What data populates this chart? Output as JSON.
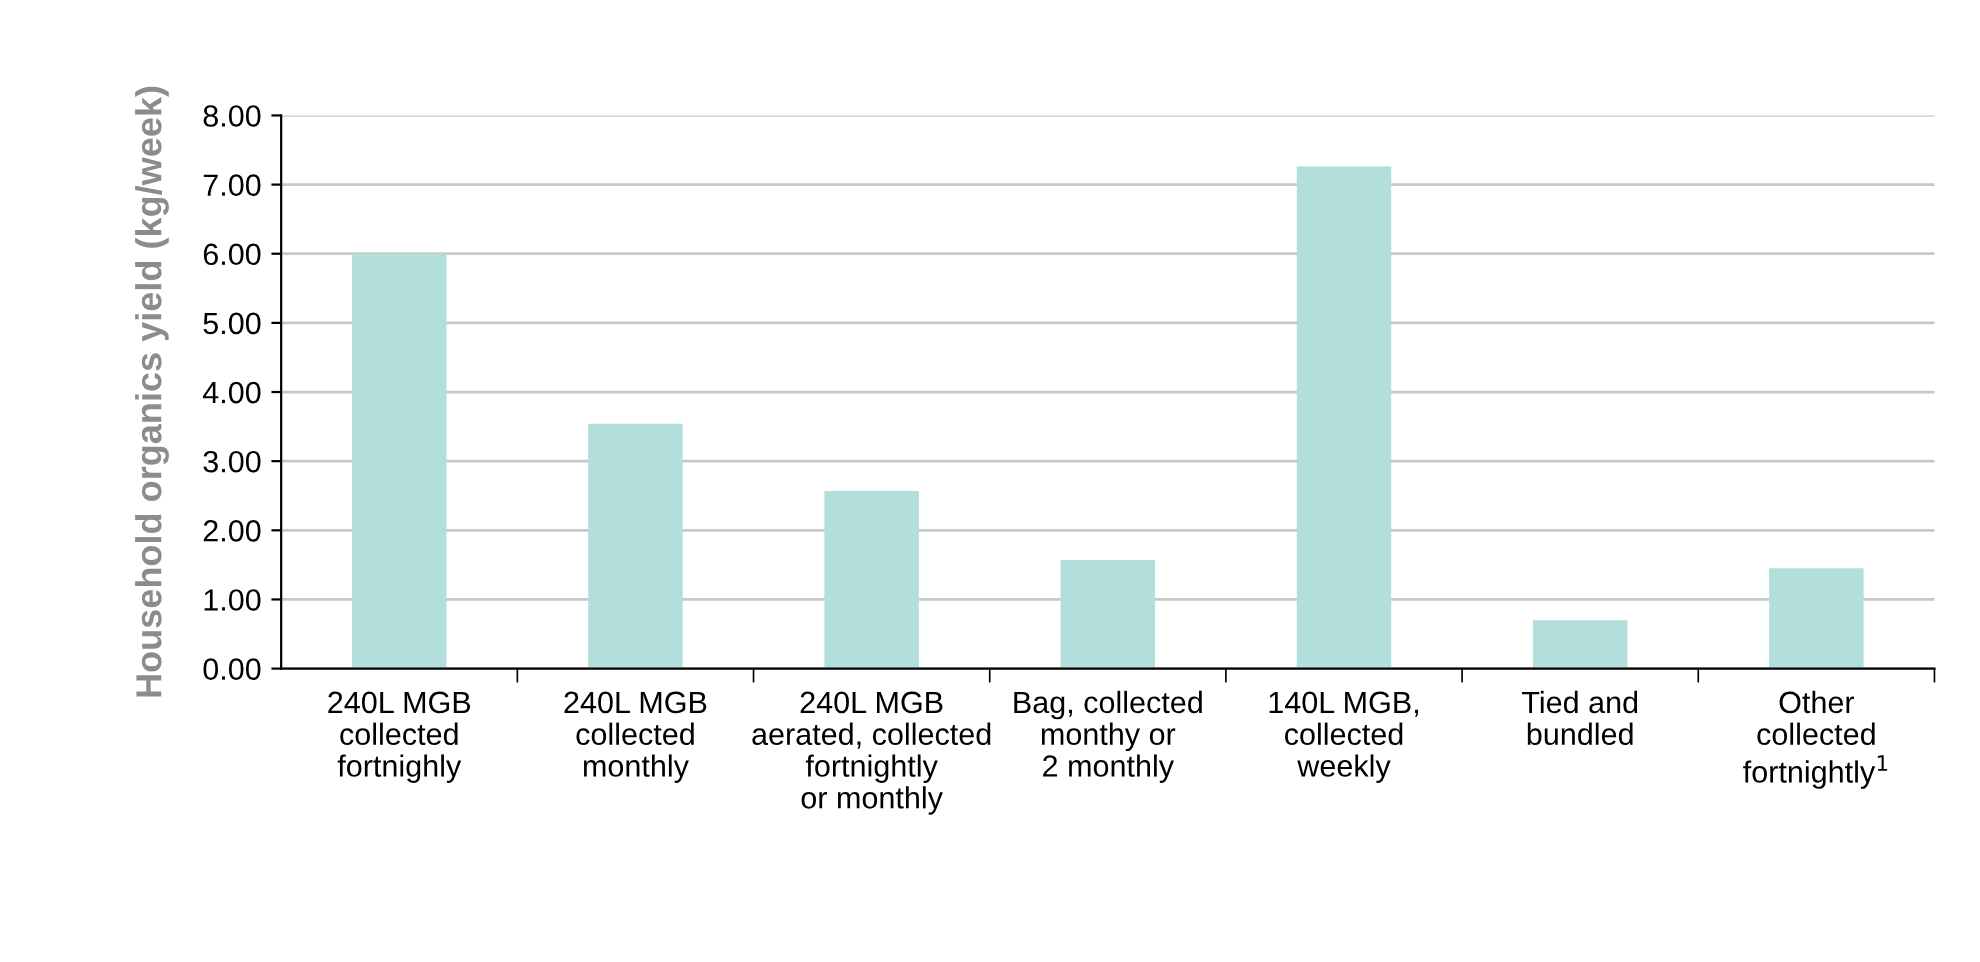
{
  "chart_data": {
    "type": "bar",
    "ylabel": "Household organics yield (kg/week)",
    "categories": [
      "240L MGB\ncollected\nfortnighly",
      "240L MGB\ncollected\nmonthly",
      "240L MGB\naerated, collected\nfortnightly\nor monthly",
      "Bag, collected\nmonthy or\n2 monthly",
      "140L MGB,\ncollected\nweekly",
      "Tied and\nbundled",
      "Other\ncollected\nfortnightly$^{1}$"
    ],
    "values": [
      6.0,
      3.54,
      2.57,
      1.57,
      7.26,
      0.7,
      1.45
    ],
    "color": "#b2dedc",
    "ylim": [
      0,
      8
    ],
    "yticks": [
      {
        "value": 0,
        "label": "0.00"
      },
      {
        "value": 1,
        "label": "1.00"
      },
      {
        "value": 2,
        "label": "2.00"
      },
      {
        "value": 3,
        "label": "3.00"
      },
      {
        "value": 4,
        "label": "4.00"
      },
      {
        "value": 5,
        "label": "5.00"
      },
      {
        "value": 6,
        "label": "6.00"
      },
      {
        "value": 7,
        "label": "7.00"
      },
      {
        "value": 8,
        "label": "8.00"
      }
    ],
    "grid": "y"
  }
}
